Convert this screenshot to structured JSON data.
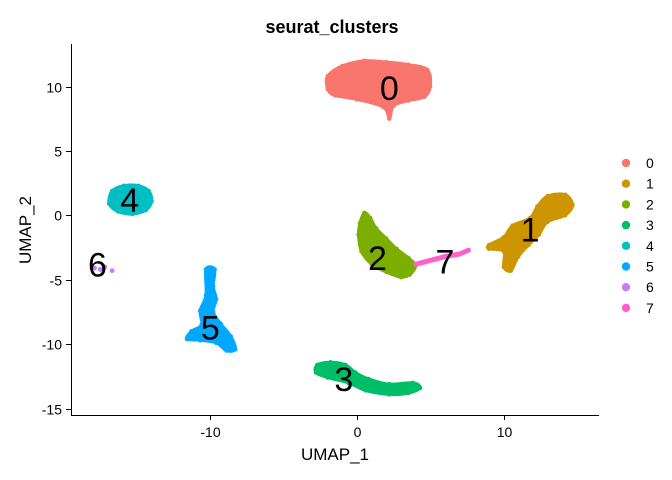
{
  "chart_data": {
    "type": "scatter",
    "title": "seurat_clusters",
    "xlabel": "UMAP_1",
    "ylabel": "UMAP_2",
    "xlim": [
      -19.5,
      16.5
    ],
    "ylim": [
      -15.5,
      13.3
    ],
    "x_ticks": [
      -10,
      0,
      10
    ],
    "y_ticks": [
      -15,
      -10,
      -5,
      0,
      5,
      10
    ],
    "grid": false,
    "legend_position": "right",
    "legend": [
      "0",
      "1",
      "2",
      "3",
      "4",
      "5",
      "6",
      "7"
    ],
    "series": [
      {
        "name": "0",
        "color": "#F8766D",
        "label_pos": [
          2.2,
          9.9
        ],
        "shape": "blob",
        "points": [
          [
            -2.0,
            10.8
          ],
          [
            -1.0,
            11.6
          ],
          [
            0.5,
            12.0
          ],
          [
            2.0,
            11.9
          ],
          [
            3.5,
            11.7
          ],
          [
            4.8,
            11.3
          ],
          [
            5.0,
            10.0
          ],
          [
            4.6,
            9.2
          ],
          [
            3.5,
            8.9
          ],
          [
            2.5,
            8.5
          ],
          [
            2.2,
            7.5
          ],
          [
            1.8,
            8.4
          ],
          [
            0.0,
            9.0
          ],
          [
            -1.5,
            9.3
          ],
          [
            -2.0,
            9.8
          ]
        ]
      },
      {
        "name": "1",
        "color": "#CD9600",
        "label_pos": [
          11.8,
          -1.1
        ],
        "shape": "blob",
        "points": [
          [
            9.0,
            -2.3
          ],
          [
            10.0,
            -1.7
          ],
          [
            10.6,
            -0.8
          ],
          [
            11.8,
            -0.2
          ],
          [
            12.3,
            0.7
          ],
          [
            13.0,
            1.5
          ],
          [
            14.2,
            1.6
          ],
          [
            14.7,
            0.8
          ],
          [
            14.2,
            0.0
          ],
          [
            13.0,
            -0.5
          ],
          [
            12.4,
            -1.5
          ],
          [
            11.7,
            -2.3
          ],
          [
            11.0,
            -3.2
          ],
          [
            10.5,
            -4.3
          ],
          [
            10.0,
            -4.0
          ],
          [
            10.0,
            -2.8
          ],
          [
            9.0,
            -2.6
          ]
        ]
      },
      {
        "name": "2",
        "color": "#7CAE00",
        "label_pos": [
          1.4,
          -3.3
        ],
        "shape": "blob",
        "points": [
          [
            0.5,
            0.2
          ],
          [
            0.9,
            -0.2
          ],
          [
            1.3,
            -1.0
          ],
          [
            2.0,
            -1.8
          ],
          [
            2.7,
            -2.6
          ],
          [
            3.5,
            -3.3
          ],
          [
            4.0,
            -3.9
          ],
          [
            3.6,
            -4.6
          ],
          [
            3.0,
            -4.8
          ],
          [
            2.0,
            -4.4
          ],
          [
            1.0,
            -3.8
          ],
          [
            0.3,
            -2.8
          ],
          [
            0.1,
            -1.5
          ],
          [
            0.2,
            -0.6
          ]
        ]
      },
      {
        "name": "3",
        "color": "#00BE67",
        "label_pos": [
          -0.9,
          -12.7
        ],
        "shape": "blob",
        "points": [
          [
            -2.7,
            -11.6
          ],
          [
            -1.8,
            -11.4
          ],
          [
            -0.8,
            -11.6
          ],
          [
            -0.1,
            -12.2
          ],
          [
            0.8,
            -12.7
          ],
          [
            2.2,
            -13.1
          ],
          [
            3.8,
            -13.0
          ],
          [
            4.3,
            -13.4
          ],
          [
            3.5,
            -13.8
          ],
          [
            2.2,
            -13.9
          ],
          [
            0.6,
            -13.6
          ],
          [
            -0.6,
            -13.0
          ],
          [
            -2.0,
            -12.6
          ],
          [
            -2.8,
            -12.2
          ]
        ]
      },
      {
        "name": "4",
        "color": "#00BFC4",
        "label_pos": [
          -15.5,
          1.2
        ],
        "shape": "blob",
        "points": [
          [
            -16.7,
            1.9
          ],
          [
            -15.9,
            2.3
          ],
          [
            -14.9,
            2.3
          ],
          [
            -14.2,
            1.9
          ],
          [
            -14.0,
            1.1
          ],
          [
            -14.4,
            0.4
          ],
          [
            -15.3,
            0.1
          ],
          [
            -16.3,
            0.3
          ],
          [
            -16.9,
            0.9
          ]
        ]
      },
      {
        "name": "5",
        "color": "#00A9FF",
        "label_pos": [
          -10.0,
          -8.7
        ],
        "shape": "blob",
        "points": [
          [
            -10.3,
            -4.2
          ],
          [
            -9.7,
            -4.2
          ],
          [
            -9.8,
            -5.5
          ],
          [
            -9.6,
            -6.5
          ],
          [
            -9.8,
            -7.5
          ],
          [
            -9.3,
            -8.4
          ],
          [
            -8.6,
            -9.4
          ],
          [
            -8.3,
            -10.4
          ],
          [
            -8.9,
            -10.5
          ],
          [
            -9.6,
            -9.9
          ],
          [
            -10.7,
            -9.7
          ],
          [
            -11.6,
            -9.6
          ],
          [
            -11.3,
            -9.0
          ],
          [
            -10.6,
            -8.5
          ],
          [
            -10.7,
            -7.4
          ],
          [
            -10.3,
            -6.2
          ]
        ]
      },
      {
        "name": "6",
        "color": "#C77CFF",
        "label_pos": [
          -17.7,
          -3.8
        ],
        "shape": "dots",
        "points": [
          [
            -17.5,
            -4.2
          ],
          [
            -17.2,
            -4.0
          ],
          [
            -16.7,
            -4.3
          ],
          [
            -17.9,
            -4.1
          ]
        ]
      },
      {
        "name": "7",
        "color": "#FF61CC",
        "label_pos": [
          6.0,
          -3.6
        ],
        "shape": "streak",
        "points": [
          [
            4.0,
            -3.8
          ],
          [
            5.0,
            -3.5
          ],
          [
            6.0,
            -3.2
          ],
          [
            7.0,
            -3.0
          ],
          [
            7.6,
            -2.7
          ]
        ]
      }
    ]
  }
}
